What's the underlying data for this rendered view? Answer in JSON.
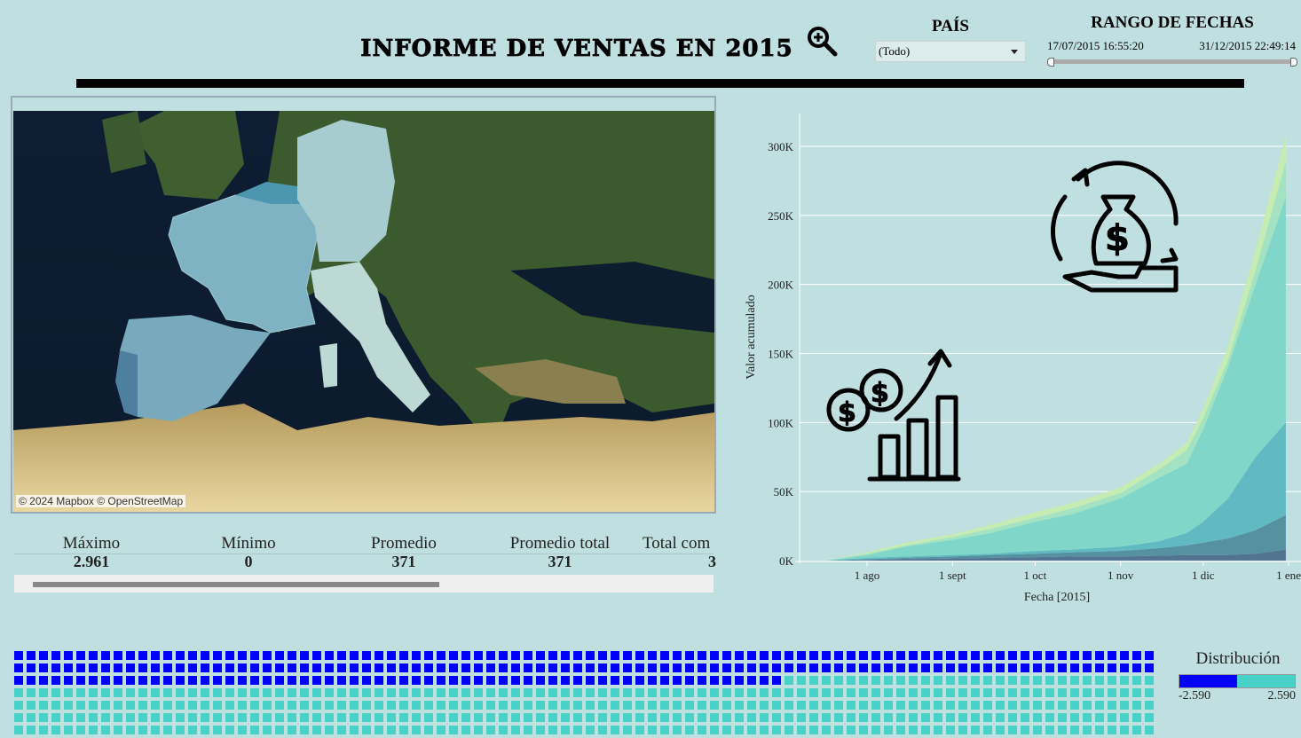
{
  "header": {
    "title": "INFORME DE VENTAS EN 2015",
    "zoom_icon": "magnifier-plus-icon"
  },
  "filters": {
    "pais_label": "PAÍS",
    "pais_value": "(Todo)",
    "rango_label": "RANGO DE FECHAS",
    "date_start": "17/07/2015 16:55:20",
    "date_end": "31/12/2015 22:49:14"
  },
  "map": {
    "credit": "© 2024 Mapbox © OpenStreetMap",
    "highlighted_colors": {
      "france": "#7fb3c4",
      "germany": "#a7ccd0",
      "italy": "#bcd9d6",
      "spain": "#78a9bd",
      "portugal": "#4f7f9e",
      "belgium": "#4c96b0"
    }
  },
  "stats": {
    "columns": [
      {
        "label": "Máximo",
        "value": "2.961"
      },
      {
        "label": "Mínimo",
        "value": "0"
      },
      {
        "label": "Promedio",
        "value": "371"
      },
      {
        "label": "Promedio total",
        "value": "371"
      },
      {
        "label": "Total com",
        "value": "3"
      }
    ]
  },
  "chart_data": {
    "type": "area",
    "stacked": true,
    "xlabel": "Fecha [2015]",
    "ylabel": "Valor acumulado",
    "x": [
      "2015-07-17",
      "2015-08-01",
      "2015-08-15",
      "2015-09-01",
      "2015-09-15",
      "2015-10-01",
      "2015-10-15",
      "2015-11-01",
      "2015-11-15",
      "2015-11-25",
      "2015-12-01",
      "2015-12-10",
      "2015-12-20",
      "2015-12-31"
    ],
    "x_ticks": [
      "1 ago",
      "1 sept",
      "1 oct",
      "1 nov",
      "1 dic",
      "1 ene"
    ],
    "y_ticks": [
      "0K",
      "50K",
      "100K",
      "150K",
      "200K",
      "250K",
      "300K"
    ],
    "ylim": [
      0,
      320000
    ],
    "grid": true,
    "series": [
      {
        "color": "#4d6e8c",
        "values": [
          0,
          500,
          1000,
          1500,
          2000,
          2500,
          3000,
          3000,
          3500,
          4000,
          4000,
          4000,
          5000,
          8000
        ]
      },
      {
        "color": "#4f8c9c",
        "values": [
          0,
          500,
          1000,
          1500,
          2000,
          2500,
          3000,
          4000,
          5500,
          7000,
          9000,
          12000,
          17000,
          25000
        ]
      },
      {
        "color": "#5cb7bf",
        "values": [
          0,
          1000,
          1000,
          1000,
          1000,
          2000,
          2000,
          3000,
          5000,
          9000,
          15000,
          29000,
          53000,
          67000
        ]
      },
      {
        "color": "#7bd5c7",
        "values": [
          0,
          2000,
          7000,
          11000,
          15000,
          21000,
          26000,
          35000,
          46000,
          50000,
          67000,
          95000,
          125000,
          163000
        ]
      },
      {
        "color": "#a2e3c0",
        "values": [
          0,
          1000,
          1000,
          2000,
          3000,
          3000,
          4000,
          4000,
          6000,
          10000,
          8000,
          5000,
          10000,
          26000
        ]
      },
      {
        "color": "#c6ebb0",
        "values": [
          0,
          1000,
          2000,
          2000,
          3000,
          4000,
          4000,
          4000,
          4000,
          5000,
          7000,
          10000,
          15000,
          19000
        ]
      }
    ]
  },
  "icons": {
    "top": "money-bag-cycle-hand-icon",
    "bottom": "coins-growth-bar-chart-icon"
  },
  "waffle": {
    "negative_color": "#0000ff",
    "positive_color": "#48d1c7",
    "columns": 92,
    "visible_rows": 7,
    "negative_count": 246
  },
  "legend": {
    "title": "Distribución",
    "min": "-2.590",
    "max": "2.590"
  }
}
